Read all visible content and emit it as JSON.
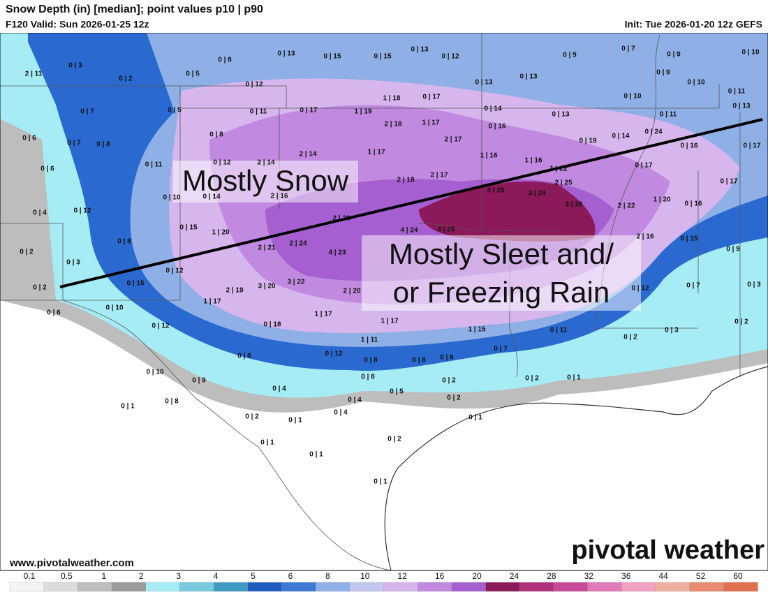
{
  "header": {
    "title": "Snow Depth (in) [median]; point values p10|p90",
    "valid": "F120 Valid: Sun 2026-01-25 12z",
    "init": "Init: Tue 2026-01-20 12z GEFS"
  },
  "annotations": {
    "snow": "Mostly Snow",
    "sleet": [
      "Mostly Sleet and/",
      "or Freezing Rain"
    ]
  },
  "points": [
    "0|13",
    "0|15",
    "0|15",
    "0|13",
    "0|12",
    "0|9",
    "0|7",
    "0|9",
    "0|10",
    "0|3",
    "2|11",
    "0|2",
    "0|5",
    "0|8",
    "0|12",
    "0|13",
    "0|13",
    "0|9",
    "0|10",
    "0|11",
    "1|18",
    "0|17",
    "0|10",
    "0|5",
    "0|11",
    "0|17",
    "1|19",
    "0|14",
    "0|13",
    "0|11",
    "0|13",
    "0|7",
    "2|18",
    "1|17",
    "0|16",
    "0|6",
    "0|7",
    "0|8",
    "0|8",
    "2|17",
    "0|19",
    "0|14",
    "0|24",
    "0|16",
    "0|17",
    "2|14",
    "1|17",
    "1|16",
    "1|16",
    "0|17",
    "0|11",
    "0|12",
    "2|14",
    "1|22",
    "0|6",
    "2|18",
    "2|17",
    "2|25",
    "0|17",
    "3|24",
    "4|25",
    "1|20",
    "0|10",
    "0|14",
    "2|16",
    "0|4",
    "0|12",
    "3|26",
    "2|22",
    "0|16",
    "2|23",
    "4|24",
    "4|25",
    "0|15",
    "1|20",
    "2|16",
    "0|15",
    "0|8",
    "2|21",
    "2|24",
    "4|23",
    "0|9",
    "0|2",
    "0|3",
    "0|12",
    "3|22",
    "3|20",
    "2|19",
    "2|20",
    "0|7",
    "0|2",
    "0|15",
    "0|12",
    "0|3",
    "1|17",
    "0|10",
    "0|6",
    "1|17",
    "1|17",
    "0|12",
    "0|18",
    "0|11",
    "0|3",
    "0|2",
    "1|15",
    "1|11",
    "0|2",
    "0|7",
    "0|8",
    "0|12",
    "0|8",
    "0|8",
    "0|6",
    "0|8",
    "0|10",
    "0|9",
    "0|2",
    "0|2",
    "0|1",
    "0|4",
    "0|5",
    "0|2",
    "0|4",
    "0|8",
    "0|1",
    "0|4",
    "0|1",
    "0|2",
    "0|1",
    "0|1",
    "0|2",
    "0|1",
    "0|1"
  ],
  "footer": {
    "url": "www.pivotalweather.com",
    "logo": "pivotal weather"
  },
  "legend": {
    "ticks": [
      0.1,
      0.5,
      1,
      2,
      3,
      4,
      5,
      6,
      8,
      10,
      12,
      16,
      20,
      24,
      28,
      32,
      36,
      44,
      52,
      60
    ],
    "colors": [
      "#f4f4f4",
      "#dcdcdc",
      "#bdbdbd",
      "#9a9a9a",
      "#a6ecf5",
      "#78c8de",
      "#3f9ac2",
      "#1f5cc0",
      "#3c7ad6",
      "#8fb0e6",
      "#c3c8f0",
      "#d7b6ee",
      "#c18ae0",
      "#a65fd0",
      "#8c1a5a",
      "#b0307a",
      "#c84a98",
      "#e07ab8",
      "#f0a0c0",
      "#eeb0a0",
      "#e88a70",
      "#e07050"
    ]
  }
}
